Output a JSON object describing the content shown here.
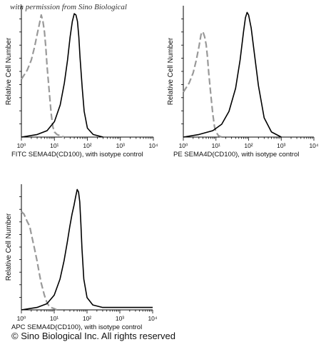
{
  "watermark": "with permission from Sino Biological",
  "footer": "© Sino Biological Inc. All rights reserved",
  "colors": {
    "sample": "#000000",
    "isotype": "#999999",
    "axis": "#000000"
  },
  "chart_data": [
    {
      "type": "line",
      "xscale": "log",
      "xlim": [
        1,
        10000
      ],
      "xticks": [
        "10⁰",
        "10¹",
        "10²",
        "10³",
        "10⁴"
      ],
      "xlabel": "FITC  SEMA4D(CD100),  with isotype control",
      "ylabel": "Relative Cell Number",
      "ylim": [
        0,
        1
      ],
      "grid": false,
      "series": [
        {
          "style": "dashed",
          "color": "#999999",
          "x": [
            1.0,
            1.5,
            2.0,
            2.5,
            3.0,
            3.5,
            4.0,
            4.5,
            5.0,
            5.5,
            6.0,
            7.0,
            8.0,
            9.0,
            10.0,
            12.0,
            15.0,
            20.0
          ],
          "y": [
            0.45,
            0.52,
            0.6,
            0.7,
            0.8,
            0.88,
            0.95,
            0.9,
            0.82,
            0.7,
            0.55,
            0.35,
            0.18,
            0.08,
            0.04,
            0.02,
            0.01,
            0.0
          ]
        },
        {
          "style": "solid",
          "color": "#000000",
          "x": [
            1.0,
            3.0,
            6.0,
            10.0,
            15.0,
            20.0,
            25.0,
            30.0,
            35.0,
            40.0,
            45.0,
            50.0,
            55.0,
            60.0,
            70.0,
            80.0,
            100.0,
            150.0,
            300.0
          ],
          "y": [
            0.0,
            0.02,
            0.05,
            0.12,
            0.25,
            0.42,
            0.6,
            0.78,
            0.9,
            0.96,
            0.95,
            0.9,
            0.78,
            0.62,
            0.38,
            0.2,
            0.07,
            0.02,
            0.0
          ]
        }
      ]
    },
    {
      "type": "line",
      "xscale": "log",
      "xlim": [
        1,
        10000
      ],
      "xticks": [
        "10⁰",
        "10¹",
        "10²",
        "10³",
        "10⁴"
      ],
      "xlabel": "PE SEMA4D(CD100), with isotype control",
      "ylabel": "Relative Cell Number",
      "ylim": [
        0,
        1
      ],
      "grid": false,
      "series": [
        {
          "style": "dashed",
          "color": "#999999",
          "x": [
            1.0,
            1.5,
            2.0,
            2.5,
            3.0,
            3.5,
            4.0,
            4.5,
            5.0,
            5.5,
            6.0,
            7.0,
            8.0,
            9.0,
            10.0,
            12.0,
            15.0
          ],
          "y": [
            0.35,
            0.42,
            0.5,
            0.6,
            0.7,
            0.8,
            0.82,
            0.78,
            0.72,
            0.62,
            0.5,
            0.32,
            0.18,
            0.08,
            0.04,
            0.01,
            0.0
          ]
        },
        {
          "style": "solid",
          "color": "#000000",
          "x": [
            1.0,
            3.0,
            8.0,
            15.0,
            25.0,
            40.0,
            55.0,
            70.0,
            80.0,
            90.0,
            100.0,
            120.0,
            150.0,
            200.0,
            300.0,
            500.0,
            1000.0
          ],
          "y": [
            0.0,
            0.02,
            0.05,
            0.1,
            0.2,
            0.38,
            0.6,
            0.82,
            0.93,
            0.97,
            0.95,
            0.85,
            0.65,
            0.4,
            0.15,
            0.04,
            0.0
          ]
        }
      ]
    },
    {
      "type": "line",
      "xscale": "log",
      "xlim": [
        1,
        10000
      ],
      "xticks": [
        "10⁰",
        "10¹",
        "10²",
        "10³",
        "10⁴"
      ],
      "xlabel": "APC SEMA4D(CD100), with isotype control",
      "ylabel": "Relative Cell Number",
      "ylim": [
        0,
        1
      ],
      "grid": false,
      "series": [
        {
          "style": "dashed",
          "color": "#999999",
          "x": [
            1.0,
            1.2,
            1.5,
            1.8,
            2.0,
            2.5,
            3.0,
            3.5,
            4.0,
            5.0,
            6.0,
            7.0,
            8.0,
            10.0,
            12.0,
            15.0
          ],
          "y": [
            0.8,
            0.78,
            0.72,
            0.68,
            0.62,
            0.5,
            0.4,
            0.3,
            0.22,
            0.12,
            0.06,
            0.03,
            0.02,
            0.01,
            0.0,
            0.0
          ]
        },
        {
          "style": "solid",
          "color": "#000000",
          "x": [
            1.0,
            3.0,
            6.0,
            10.0,
            15.0,
            20.0,
            25.0,
            30.0,
            35.0,
            40.0,
            45.0,
            50.0,
            55.0,
            60.0,
            65.0,
            70.0,
            80.0,
            100.0,
            150.0,
            300.0,
            10000.0
          ],
          "y": [
            0.0,
            0.02,
            0.05,
            0.12,
            0.25,
            0.4,
            0.55,
            0.68,
            0.78,
            0.85,
            0.92,
            0.98,
            0.96,
            0.88,
            0.7,
            0.5,
            0.25,
            0.1,
            0.04,
            0.02,
            0.02
          ]
        }
      ]
    }
  ]
}
